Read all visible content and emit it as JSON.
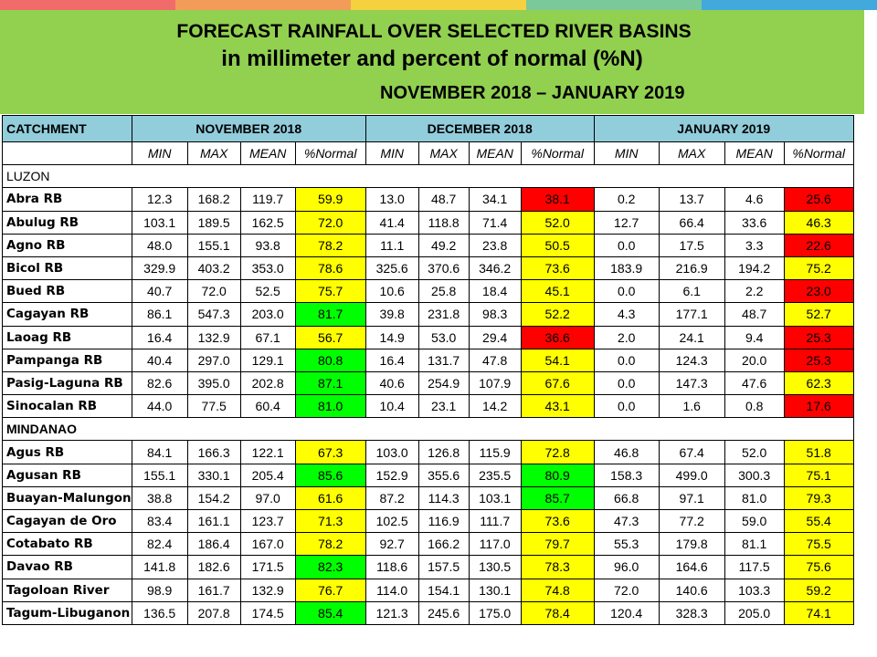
{
  "top_bar_colors": [
    "#f26b6b",
    "#f39c5a",
    "#f5d03f",
    "#7bc89a",
    "#41a9dc"
  ],
  "colors": {
    "green": "#00ff00",
    "yellow": "#ffff00",
    "red": "#ff0000",
    "header_bg": "#92d050",
    "table_head_bg": "#92cddc"
  },
  "title": {
    "line1": "FORECAST RAINFALL OVER SELECTED RIVER BASINS",
    "line2": "in millimeter  and percent of normal (%N)",
    "line3": "NOVEMBER 2018 – JANUARY 2019"
  },
  "table": {
    "catchment_label": "CATCHMENT",
    "months": [
      "NOVEMBER 2018",
      "DECEMBER 2018",
      "JANUARY 2019"
    ],
    "subheaders": [
      "MIN",
      "MAX",
      "MEAN",
      "%Normal"
    ],
    "regions": [
      {
        "name": "LUZON",
        "rows": [
          {
            "name": "Abra RB",
            "v": [
              "12.3",
              "168.2",
              "119.7",
              "59.9",
              "13.0",
              "48.7",
              "34.1",
              "38.1",
              "0.2",
              "13.7",
              "4.6",
              "25.6"
            ],
            "c": [
              "yellow",
              "red",
              "red"
            ]
          },
          {
            "name": "Abulug RB",
            "v": [
              "103.1",
              "189.5",
              "162.5",
              "72.0",
              "41.4",
              "118.8",
              "71.4",
              "52.0",
              "12.7",
              "66.4",
              "33.6",
              "46.3"
            ],
            "c": [
              "yellow",
              "yellow",
              "yellow"
            ]
          },
          {
            "name": "Agno RB",
            "v": [
              "48.0",
              "155.1",
              "93.8",
              "78.2",
              "11.1",
              "49.2",
              "23.8",
              "50.5",
              "0.0",
              "17.5",
              "3.3",
              "22.6"
            ],
            "c": [
              "yellow",
              "yellow",
              "red"
            ]
          },
          {
            "name": "Bicol RB",
            "v": [
              "329.9",
              "403.2",
              "353.0",
              "78.6",
              "325.6",
              "370.6",
              "346.2",
              "73.6",
              "183.9",
              "216.9",
              "194.2",
              "75.2"
            ],
            "c": [
              "yellow",
              "yellow",
              "yellow"
            ]
          },
          {
            "name": "Bued RB",
            "v": [
              "40.7",
              "72.0",
              "52.5",
              "75.7",
              "10.6",
              "25.8",
              "18.4",
              "45.1",
              "0.0",
              "6.1",
              "2.2",
              "23.0"
            ],
            "c": [
              "yellow",
              "yellow",
              "red"
            ]
          },
          {
            "name": "Cagayan RB",
            "v": [
              "86.1",
              "547.3",
              "203.0",
              "81.7",
              "39.8",
              "231.8",
              "98.3",
              "52.2",
              "4.3",
              "177.1",
              "48.7",
              "52.7"
            ],
            "c": [
              "green",
              "yellow",
              "yellow"
            ]
          },
          {
            "name": "Laoag RB",
            "v": [
              "16.4",
              "132.9",
              "67.1",
              "56.7",
              "14.9",
              "53.0",
              "29.4",
              "36.6",
              "2.0",
              "24.1",
              "9.4",
              "25.3"
            ],
            "c": [
              "yellow",
              "red",
              "red"
            ]
          },
          {
            "name": "Pampanga RB",
            "v": [
              "40.4",
              "297.0",
              "129.1",
              "80.8",
              "16.4",
              "131.7",
              "47.8",
              "54.1",
              "0.0",
              "124.3",
              "20.0",
              "25.3"
            ],
            "c": [
              "green",
              "yellow",
              "red"
            ]
          },
          {
            "name": "Pasig-Laguna RB",
            "v": [
              "82.6",
              "395.0",
              "202.8",
              "87.1",
              "40.6",
              "254.9",
              "107.9",
              "67.6",
              "0.0",
              "147.3",
              "47.6",
              "62.3"
            ],
            "c": [
              "green",
              "yellow",
              "yellow"
            ]
          },
          {
            "name": "Sinocalan RB",
            "v": [
              "44.0",
              "77.5",
              "60.4",
              "81.0",
              "10.4",
              "23.1",
              "14.2",
              "43.1",
              "0.0",
              "1.6",
              "0.8",
              "17.6"
            ],
            "c": [
              "green",
              "yellow",
              "red"
            ]
          }
        ]
      },
      {
        "name": "MINDANAO",
        "rows": [
          {
            "name": "Agus RB",
            "v": [
              "84.1",
              "166.3",
              "122.1",
              "67.3",
              "103.0",
              "126.8",
              "115.9",
              "72.8",
              "46.8",
              "67.4",
              "52.0",
              "51.8"
            ],
            "c": [
              "yellow",
              "yellow",
              "yellow"
            ]
          },
          {
            "name": "Agusan RB",
            "v": [
              "155.1",
              "330.1",
              "205.4",
              "85.6",
              "152.9",
              "355.6",
              "235.5",
              "80.9",
              "158.3",
              "499.0",
              "300.3",
              "75.1"
            ],
            "c": [
              "green",
              "green",
              "yellow"
            ]
          },
          {
            "name": "Buayan-Malungon",
            "v": [
              "38.8",
              "154.2",
              "97.0",
              "61.6",
              "87.2",
              "114.3",
              "103.1",
              "85.7",
              "66.8",
              "97.1",
              "81.0",
              "79.3"
            ],
            "c": [
              "yellow",
              "green",
              "yellow"
            ]
          },
          {
            "name": "Cagayan de Oro",
            "v": [
              "83.4",
              "161.1",
              "123.7",
              "71.3",
              "102.5",
              "116.9",
              "111.7",
              "73.6",
              "47.3",
              "77.2",
              "59.0",
              "55.4"
            ],
            "c": [
              "yellow",
              "yellow",
              "yellow"
            ]
          },
          {
            "name": "Cotabato RB",
            "v": [
              "82.4",
              "186.4",
              "167.0",
              "78.2",
              "92.7",
              "166.2",
              "117.0",
              "79.7",
              "55.3",
              "179.8",
              "81.1",
              "75.5"
            ],
            "c": [
              "yellow",
              "yellow",
              "yellow"
            ]
          },
          {
            "name": "Davao RB",
            "v": [
              "141.8",
              "182.6",
              "171.5",
              "82.3",
              "118.6",
              "157.5",
              "130.5",
              "78.3",
              "96.0",
              "164.6",
              "117.5",
              "75.6"
            ],
            "c": [
              "green",
              "yellow",
              "yellow"
            ]
          },
          {
            "name": "Tagoloan River",
            "v": [
              "98.9",
              "161.7",
              "132.9",
              "76.7",
              "114.0",
              "154.1",
              "130.1",
              "74.8",
              "72.0",
              "140.6",
              "103.3",
              "59.2"
            ],
            "c": [
              "yellow",
              "yellow",
              "yellow"
            ]
          },
          {
            "name": "Tagum-Libuganon",
            "v": [
              "136.5",
              "207.8",
              "174.5",
              "85.4",
              "121.3",
              "245.6",
              "175.0",
              "78.4",
              "120.4",
              "328.3",
              "205.0",
              "74.1"
            ],
            "c": [
              "green",
              "yellow",
              "yellow"
            ]
          }
        ]
      }
    ]
  }
}
